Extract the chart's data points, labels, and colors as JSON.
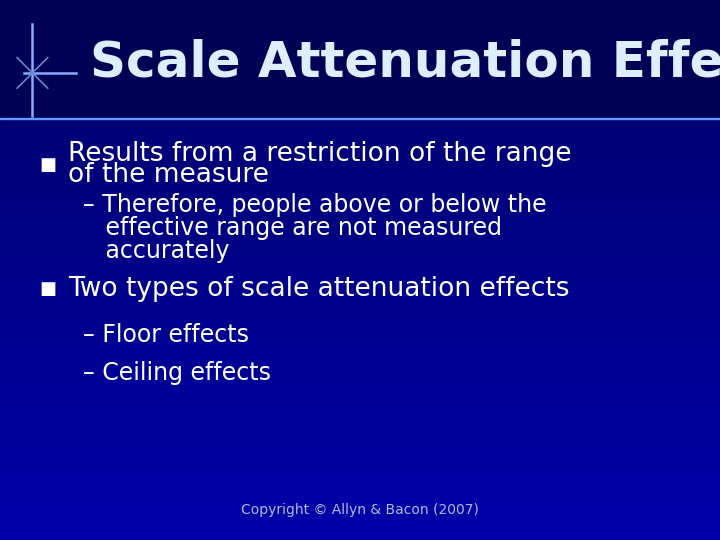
{
  "title": "Scale Attenuation Effects",
  "title_fontsize": 36,
  "title_color": "#DDEEFF",
  "title_fontstyle": "bold",
  "bg_color_top": "#000066",
  "bg_color_bottom": "#0000AA",
  "bullet1_line1": "Results from a restriction of the range",
  "bullet1_line2": "of the measure",
  "sub1_line1": "– Therefore, people above or below the",
  "sub1_line2": "   effective range are not measured",
  "sub1_line3": "   accurately",
  "bullet2": "Two types of scale attenuation effects",
  "sub2a": "– Floor effects",
  "sub2b": "– Ceiling effects",
  "copyright": "Copyright © Allyn & Bacon (2007)",
  "bullet_color": "#FFFFFF",
  "bullet_marker_color": "#FFFFFF",
  "text_fontsize": 19,
  "sub_fontsize": 17,
  "copyright_fontsize": 10,
  "header_line_color": "#6699FF",
  "star_color": "#88AAFF",
  "star_color2": "#6688CC"
}
